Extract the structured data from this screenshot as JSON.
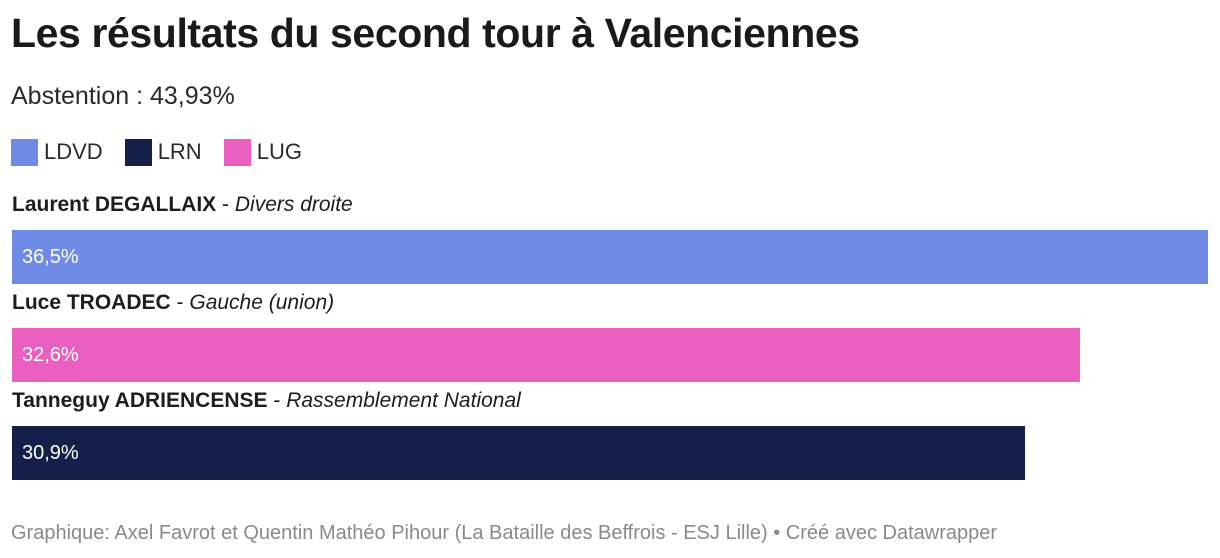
{
  "header": {
    "title": "Les résultats du second tour à Valenciennes",
    "subtitle": "Abstention : 43,93%"
  },
  "legend": [
    {
      "label": "LDVD",
      "color": "#6f8be6"
    },
    {
      "label": "LRN",
      "color": "#15204a"
    },
    {
      "label": "LUG",
      "color": "#ea5fc0"
    }
  ],
  "chart_data": {
    "type": "bar",
    "orientation": "horizontal",
    "categories": [
      "Laurent DEGALLAIX - Divers droite",
      "Luce TROADEC - Gauche (union)",
      "Tanneguy ADRIENCENSE - Rassemblement National"
    ],
    "values": [
      36.5,
      32.6,
      30.9
    ],
    "xlim": [
      0,
      36.5
    ],
    "grid": false,
    "legend_position": "top-left",
    "rows": [
      {
        "name": "Laurent DEGALLAIX",
        "separator": " - ",
        "party": "Divers droite",
        "value": 36.5,
        "value_label": "36,5%",
        "color": "#6f8be6"
      },
      {
        "name": "Luce TROADEC",
        "separator": " - ",
        "party": "Gauche (union)",
        "value": 32.6,
        "value_label": "32,6%",
        "color": "#ea5fc0"
      },
      {
        "name": "Tanneguy ADRIENCENSE",
        "separator": " - ",
        "party": "Rassemblement National",
        "value": 30.9,
        "value_label": "30,9%",
        "color": "#15204a"
      }
    ]
  },
  "footer": {
    "credit": "Graphique: Axel Favrot et Quentin Mathéo Pihour (La Bataille des Beffrois - ESJ Lille) • Créé avec Datawrapper"
  }
}
